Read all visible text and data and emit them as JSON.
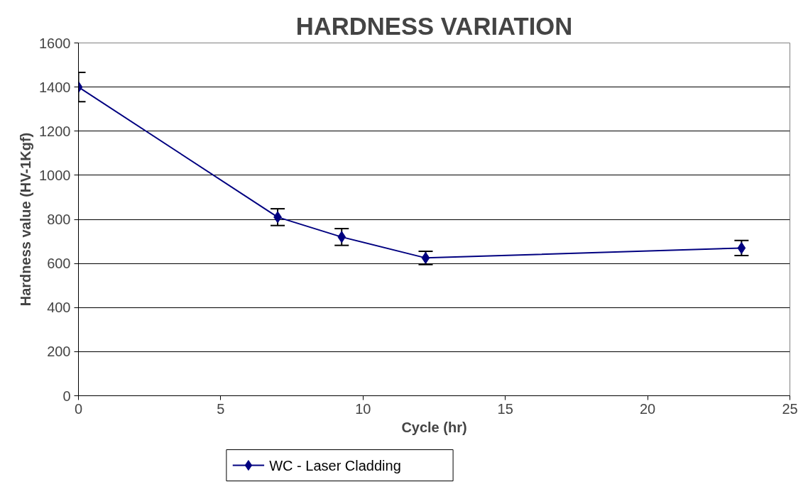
{
  "chart_data": {
    "type": "line",
    "title": "HARDNESS VARIATION",
    "xlabel": "Cycle (hr)",
    "ylabel": "Hardness value (HV-1Kgf)",
    "x": [
      0,
      7.0,
      9.25,
      12.2,
      23.3
    ],
    "series": [
      {
        "name": "WC - Laser Cladding",
        "color": "#000080",
        "values": [
          1400,
          810,
          720,
          625,
          670
        ],
        "errors": [
          66,
          38,
          38,
          30,
          34
        ]
      }
    ],
    "xlim": [
      0,
      25
    ],
    "xticks": [
      0,
      5,
      10,
      15,
      20,
      25
    ],
    "ylim": [
      0,
      1600
    ],
    "yticks": [
      0,
      200,
      400,
      600,
      800,
      1000,
      1200,
      1400,
      1600
    ],
    "grid": "y",
    "legend": "bottom",
    "marker": "diamond",
    "line_style": "solid"
  }
}
